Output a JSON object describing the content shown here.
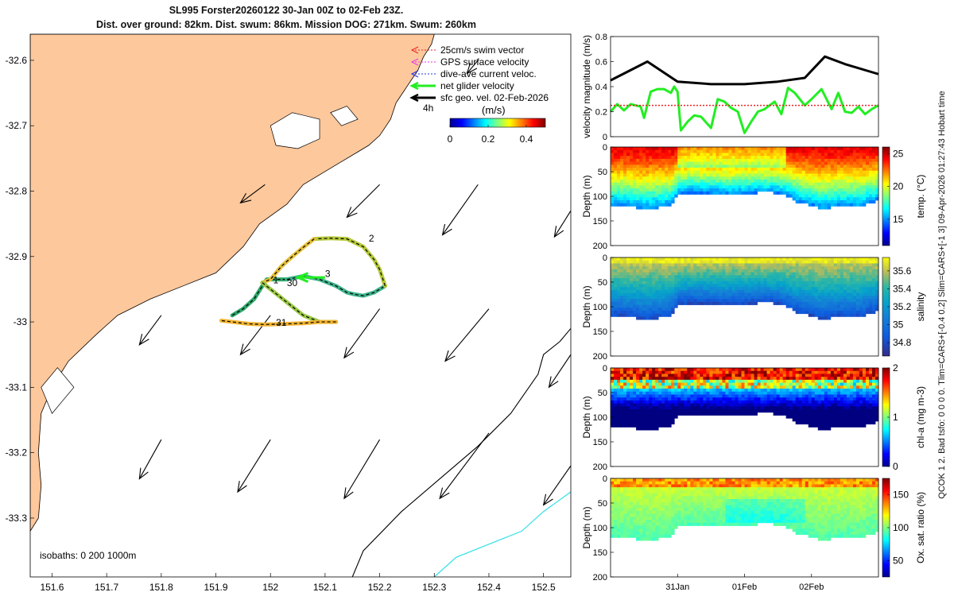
{
  "title_line1": "SL995 Forster20260122 30-Jan 00Z to 02-Feb 23Z.",
  "title_line2": "Dist. over ground: 82km. Dist. swum: 86km. Mission DOG: 271km. Swum: 260km",
  "side_text": "QCOK 1 2. Bad tsfo: 0 0 0 0. Tlim=CARS+[-0.4 0.2] Slim=CARS+[-1 3] 09-Apr-2026 01:27:43 Hobart time",
  "colors": {
    "land": "#fdc89c",
    "iso200": "#000000",
    "iso1000": "#33e0e8",
    "track_teal": "#22a58a",
    "net_vel": "#22ee22",
    "gps": "#ee33ee",
    "dive": "#2233ee",
    "swim": "#ee2222"
  },
  "chart_data": [
    {
      "type": "map",
      "name": "glider-track-map",
      "xlim": [
        151.56,
        152.55
      ],
      "ylim": [
        -33.39,
        -32.56
      ],
      "xticks": [
        151.6,
        151.7,
        151.8,
        151.9,
        152,
        152.1,
        152.2,
        152.3,
        152.4,
        152.5
      ],
      "xtick_labels": [
        "151.6",
        "151.7",
        "151.8",
        "151.9",
        "152",
        "152.1",
        "152.2",
        "152.3",
        "152.4",
        "152.5"
      ],
      "yticks": [
        -32.6,
        -32.7,
        -32.8,
        -32.9,
        -33.0,
        -33.1,
        -33.2,
        -33.3
      ],
      "ytick_labels": [
        "-32.6",
        "-32.7",
        "-32.8",
        "-32.9",
        "-33",
        "-33.1",
        "-33.2",
        "-33.3"
      ],
      "coast": [
        [
          151.56,
          -33.32
        ],
        [
          151.575,
          -33.3
        ],
        [
          151.58,
          -33.25
        ],
        [
          151.575,
          -33.2
        ],
        [
          151.58,
          -33.14
        ],
        [
          151.6,
          -33.1
        ],
        [
          151.63,
          -33.06
        ],
        [
          151.68,
          -33.02
        ],
        [
          151.72,
          -32.99
        ],
        [
          151.78,
          -32.965
        ],
        [
          151.84,
          -32.945
        ],
        [
          151.9,
          -32.925
        ],
        [
          151.95,
          -32.885
        ],
        [
          151.98,
          -32.85
        ],
        [
          152.03,
          -32.82
        ],
        [
          152.06,
          -32.79
        ],
        [
          152.1,
          -32.77
        ],
        [
          152.13,
          -32.755
        ],
        [
          152.16,
          -32.74
        ],
        [
          152.18,
          -32.73
        ],
        [
          152.2,
          -32.715
        ],
        [
          152.22,
          -32.69
        ],
        [
          152.23,
          -32.665
        ],
        [
          152.25,
          -32.64
        ],
        [
          152.27,
          -32.615
        ],
        [
          152.28,
          -32.595
        ],
        [
          152.295,
          -32.575
        ],
        [
          152.3,
          -32.56
        ],
        [
          151.56,
          -32.56
        ]
      ],
      "isobath_labels": {
        "text": "isobaths:",
        "values": [
          "0",
          "200",
          "1000m"
        ]
      },
      "isobath_200": [
        [
          152.15,
          -33.39
        ],
        [
          152.17,
          -33.35
        ],
        [
          152.24,
          -33.29
        ],
        [
          152.31,
          -33.24
        ],
        [
          152.38,
          -33.19
        ],
        [
          152.44,
          -33.14
        ],
        [
          152.49,
          -33.08
        ],
        [
          152.5,
          -33.05
        ],
        [
          152.53,
          -33.03
        ],
        [
          152.55,
          -33.01
        ]
      ],
      "isobath_1000": [
        [
          152.3,
          -33.39
        ],
        [
          152.34,
          -33.36
        ],
        [
          152.4,
          -33.34
        ],
        [
          152.46,
          -33.32
        ],
        [
          152.5,
          -33.29
        ],
        [
          152.55,
          -33.26
        ]
      ],
      "track": [
        {
          "pts": [
            [
              151.93,
              -32.99
            ],
            [
              151.95,
              -32.98
            ],
            [
              151.97,
              -32.965
            ],
            [
              151.985,
              -32.945
            ],
            [
              151.993,
              -32.935
            ],
            [
              152.0,
              -32.935
            ],
            [
              152.03,
              -32.935
            ]
          ],
          "color": "#2ea86a"
        },
        {
          "pts": [
            [
              152.03,
              -32.935
            ],
            [
              152.06,
              -32.93
            ],
            [
              152.09,
              -32.935
            ],
            [
              152.12,
              -32.945
            ],
            [
              152.14,
              -32.955
            ],
            [
              152.155,
              -32.958
            ],
            [
              152.17,
              -32.96
            ],
            [
              152.19,
              -32.955
            ],
            [
              152.21,
              -32.945
            ]
          ],
          "color": "#3fb38a"
        },
        {
          "pts": [
            [
              152.21,
              -32.945
            ],
            [
              152.2,
              -32.92
            ],
            [
              152.19,
              -32.905
            ],
            [
              152.17,
              -32.885
            ],
            [
              152.14,
              -32.873
            ],
            [
              152.11,
              -32.872
            ],
            [
              152.08,
              -32.873
            ]
          ],
          "color": "#b6c93a"
        },
        {
          "pts": [
            [
              152.08,
              -32.873
            ],
            [
              152.06,
              -32.886
            ],
            [
              152.04,
              -32.9
            ],
            [
              152.02,
              -32.915
            ],
            [
              152.0,
              -32.935
            ],
            [
              151.985,
              -32.94
            ]
          ],
          "color": "#e6c03a"
        },
        {
          "pts": [
            [
              151.985,
              -32.94
            ],
            [
              152.0,
              -32.95
            ],
            [
              152.03,
              -32.97
            ],
            [
              152.06,
              -32.99
            ],
            [
              152.09,
              -33.0
            ],
            [
              152.12,
              -33.0
            ]
          ],
          "color": "#9ac844"
        },
        {
          "pts": [
            [
              152.12,
              -33.0
            ],
            [
              152.09,
              -33.0
            ],
            [
              152.06,
              -33.002
            ],
            [
              152.03,
              -33.003
            ],
            [
              151.99,
              -33.004
            ],
            [
              151.96,
              -33.003
            ],
            [
              151.93,
              -33.0
            ],
            [
              151.91,
              -32.998
            ]
          ],
          "color": "#f2b433"
        }
      ],
      "track_labels": [
        {
          "text": "2",
          "lon": 152.18,
          "lat": -32.877
        },
        {
          "text": "3",
          "lon": 152.1,
          "lat": -32.931
        },
        {
          "text": "30",
          "lon": 152.03,
          "lat": -32.945
        },
        {
          "text": "1",
          "lon": 152.005,
          "lat": -32.941
        },
        {
          "text": "31",
          "lon": 152.01,
          "lat": -33.006
        }
      ],
      "net_velocity": {
        "from": [
          152.1,
          -32.932
        ],
        "to": [
          152.05,
          -32.932
        ]
      },
      "arrows": [
        {
          "lon": 151.99,
          "lat": -32.79,
          "dlon": -0.045,
          "dlat": -0.028
        },
        {
          "lon": 152.2,
          "lat": -32.79,
          "dlon": -0.06,
          "dlat": -0.05
        },
        {
          "lon": 152.38,
          "lat": -32.79,
          "dlon": -0.065,
          "dlat": -0.077
        },
        {
          "lon": 152.55,
          "lat": -32.83,
          "dlon": -0.03,
          "dlat": -0.04
        },
        {
          "lon": 151.8,
          "lat": -32.99,
          "dlon": -0.04,
          "dlat": -0.045
        },
        {
          "lon": 152.0,
          "lat": -32.99,
          "dlon": -0.055,
          "dlat": -0.06
        },
        {
          "lon": 152.2,
          "lat": -32.98,
          "dlon": -0.065,
          "dlat": -0.075
        },
        {
          "lon": 152.4,
          "lat": -32.98,
          "dlon": -0.08,
          "dlat": -0.08
        },
        {
          "lon": 152.55,
          "lat": -33.05,
          "dlon": -0.04,
          "dlat": -0.05
        },
        {
          "lon": 151.8,
          "lat": -33.18,
          "dlon": -0.04,
          "dlat": -0.06
        },
        {
          "lon": 152.0,
          "lat": -33.18,
          "dlon": -0.06,
          "dlat": -0.08
        },
        {
          "lon": 152.2,
          "lat": -33.18,
          "dlon": -0.065,
          "dlat": -0.09
        },
        {
          "lon": 152.4,
          "lat": -33.17,
          "dlon": -0.09,
          "dlat": -0.1
        },
        {
          "lon": 152.55,
          "lat": -33.22,
          "dlon": -0.05,
          "dlat": -0.06
        },
        {
          "lon": 152.38,
          "lat": -32.6,
          "dlon": -0.02,
          "dlat": -0.02
        }
      ],
      "legend": [
        {
          "label": "25cm/s swim vector",
          "color": "#ee2222",
          "dashed": true
        },
        {
          "label": "GPS surface velocity",
          "color": "#ee33ee",
          "dashed": true
        },
        {
          "label": "dive-ave current veloc.",
          "color": "#2233ee",
          "dashed": true
        },
        {
          "label": "net glider velocity",
          "color": "#22ee22",
          "dashed": false
        },
        {
          "label": "sfc geo. vel. 02-Feb-2026",
          "color": "#000000",
          "dashed": false
        }
      ],
      "legend_note": "4h",
      "colorbar": {
        "label": "(m/s)",
        "min": 0,
        "max": 0.5,
        "ticks": [
          0,
          0.2,
          0.4
        ],
        "tick_labels": [
          "0",
          "0.2",
          "0.4"
        ]
      }
    },
    {
      "type": "line",
      "name": "velocity-magnitude",
      "ylabel": "velocity magnitude (m/s)",
      "xlim": [
        0,
        4
      ],
      "ylim": [
        0,
        0.8
      ],
      "yticks": [
        0,
        0.2,
        0.4,
        0.6,
        0.8
      ],
      "ytick_labels": [
        "0",
        "0.2",
        "0.4",
        "0.6",
        "0.8"
      ],
      "series": [
        {
          "name": "black",
          "color": "#000000",
          "x": [
            0,
            0.55,
            1,
            1.5,
            2,
            2.5,
            2.9,
            3.2,
            3.5,
            4
          ],
          "y": [
            0.45,
            0.6,
            0.44,
            0.42,
            0.42,
            0.44,
            0.47,
            0.64,
            0.58,
            0.5
          ]
        },
        {
          "name": "green",
          "color": "#22ee22",
          "x": [
            0,
            0.1,
            0.2,
            0.3,
            0.45,
            0.5,
            0.6,
            0.7,
            0.8,
            0.9,
            0.95,
            1.0,
            1.05,
            1.15,
            1.25,
            1.35,
            1.5,
            1.6,
            1.7,
            1.8,
            1.9,
            2.0,
            2.1,
            2.2,
            2.3,
            2.45,
            2.55,
            2.65,
            2.75,
            2.9,
            3.0,
            3.15,
            3.3,
            3.4,
            3.5,
            3.6,
            3.7,
            3.8,
            3.9,
            4.0
          ],
          "y": [
            0.2,
            0.26,
            0.21,
            0.26,
            0.24,
            0.15,
            0.36,
            0.38,
            0.38,
            0.35,
            0.4,
            0.36,
            0.05,
            0.12,
            0.17,
            0.16,
            0.07,
            0.3,
            0.28,
            0.23,
            0.2,
            0.03,
            0.12,
            0.2,
            0.22,
            0.28,
            0.18,
            0.39,
            0.35,
            0.25,
            0.3,
            0.38,
            0.22,
            0.35,
            0.2,
            0.19,
            0.24,
            0.18,
            0.22,
            0.25
          ]
        },
        {
          "name": "red-dotted",
          "color": "#ee2222",
          "x": [
            0,
            4
          ],
          "y": [
            0.25,
            0.25
          ]
        }
      ]
    },
    {
      "type": "heatmap",
      "name": "temperature-section",
      "ylabel": "Depth (m)",
      "ylim": [
        0,
        200
      ],
      "yticks": [
        0,
        50,
        100,
        150,
        200
      ],
      "ytick_labels": [
        "0",
        "50",
        "100",
        "150",
        "200"
      ],
      "colorbar_label": "temp. (°C)",
      "cmin": 11,
      "cmax": 26,
      "cticks": [
        15,
        20,
        25
      ],
      "ctick_labels": [
        "15",
        "20",
        "25"
      ],
      "profile": "temp"
    },
    {
      "type": "heatmap",
      "name": "salinity-section",
      "ylabel": "Depth (m)",
      "ylim": [
        0,
        200
      ],
      "yticks": [
        0,
        50,
        100,
        150,
        200
      ],
      "ytick_labels": [
        "0",
        "50",
        "100",
        "150",
        "200"
      ],
      "colorbar_label": "salinity",
      "cmin": 34.65,
      "cmax": 35.75,
      "cticks": [
        34.8,
        35,
        35.2,
        35.4,
        35.6
      ],
      "ctick_labels": [
        "34.8",
        "35",
        "35.2",
        "35.4",
        "35.6"
      ],
      "profile": "sal"
    },
    {
      "type": "heatmap",
      "name": "chlorophyll-section",
      "ylabel": "Depth (m)",
      "ylim": [
        0,
        200
      ],
      "yticks": [
        0,
        50,
        100,
        150,
        200
      ],
      "ytick_labels": [
        "0",
        "50",
        "100",
        "150",
        "200"
      ],
      "colorbar_label": "chl-a (mg m-3)",
      "cmin": 0,
      "cmax": 2,
      "cticks": [
        0,
        1,
        2
      ],
      "ctick_labels": [
        "0",
        "1",
        "2"
      ],
      "profile": "chl"
    },
    {
      "type": "heatmap",
      "name": "oxygen-section",
      "ylabel": "Depth (m)",
      "ylim": [
        0,
        200
      ],
      "yticks": [
        0,
        50,
        100,
        150,
        200
      ],
      "ytick_labels": [
        "0",
        "50",
        "100",
        "150",
        "200"
      ],
      "colorbar_label": "Ox. sat. ratio (%)",
      "cmin": 25,
      "cmax": 175,
      "cticks": [
        50,
        100,
        150
      ],
      "ctick_labels": [
        "50",
        "100",
        "150"
      ],
      "profile": "oxy",
      "xticks": [
        1.0,
        2.0,
        3.0
      ],
      "xtick_labels": [
        "31Jan",
        "01Feb",
        "02Feb"
      ]
    }
  ],
  "bottom_depth": {
    "x": [
      0,
      0.3,
      0.5,
      0.7,
      0.9,
      1.0,
      1.2,
      1.5,
      1.8,
      2.0,
      2.2,
      2.45,
      2.6,
      2.8,
      3.0,
      3.15,
      3.3,
      3.5,
      3.7,
      3.85,
      4.0
    ],
    "y": [
      115,
      118,
      125,
      120,
      118,
      95,
      90,
      92,
      94,
      92,
      90,
      90,
      95,
      110,
      115,
      125,
      120,
      118,
      120,
      112,
      105
    ]
  }
}
